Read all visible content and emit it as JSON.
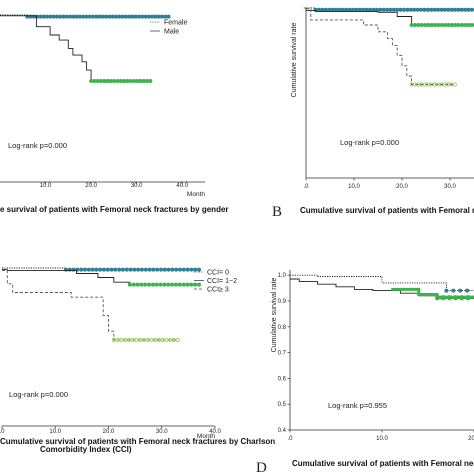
{
  "colors": {
    "blue": "#2f7f96",
    "green": "#39b54a",
    "lightgreen": "#8cc63f",
    "black": "#222222",
    "gray": "#555555"
  },
  "chart_data": [
    {
      "type": "line",
      "panel": "A",
      "title": "e survival of patients with Femoral neck fractures by gender",
      "xlabel": "Month",
      "ylabel": "",
      "xlim": [
        0,
        45
      ],
      "ylim": [
        0.0,
        1.0
      ],
      "x_ticks": [
        "10.0",
        "20.0",
        "30.0",
        "40.0"
      ],
      "letter": "",
      "logrank": "Log-rank p=0.000",
      "series": [
        {
          "name": "Female",
          "style": "dotted",
          "x": [
            0,
            6,
            6,
            37
          ],
          "y": [
            1.0,
            1.0,
            0.99,
            0.99
          ]
        },
        {
          "name": "Male",
          "style": "solid",
          "x": [
            0,
            8,
            8,
            11,
            11,
            13,
            13,
            15,
            15,
            16,
            16,
            18,
            18,
            19,
            19,
            20,
            20,
            33
          ],
          "y": [
            0.995,
            0.995,
            0.93,
            0.93,
            0.88,
            0.88,
            0.85,
            0.85,
            0.8,
            0.8,
            0.76,
            0.76,
            0.72,
            0.72,
            0.67,
            0.67,
            0.605,
            0.605
          ]
        }
      ]
    },
    {
      "type": "line",
      "panel": "B",
      "title": "Cumulative survival of patients with Femoral neck",
      "xlabel": "",
      "ylabel": "Cumulative survival rate",
      "xlim": [
        0,
        35
      ],
      "ylim": [
        0.0,
        1.0
      ],
      "x_ticks": [
        ".0",
        "10.0",
        "20.0",
        "30.0"
      ],
      "letter": "B",
      "logrank": "Log-rank p=0.000",
      "series": [
        {
          "name": "",
          "style": "dotted",
          "x": [
            0,
            2,
            2,
            36
          ],
          "y": [
            1.0,
            1.0,
            0.99,
            0.99
          ]
        },
        {
          "name": "",
          "style": "solid",
          "x": [
            0,
            2,
            2,
            15,
            15,
            19,
            19,
            22,
            22,
            36
          ],
          "y": [
            0.985,
            0.985,
            0.98,
            0.98,
            0.975,
            0.975,
            0.95,
            0.95,
            0.9,
            0.9
          ]
        },
        {
          "name": "",
          "style": "dashed",
          "x": [
            0,
            1,
            1,
            12,
            12,
            15,
            15,
            17,
            17,
            18,
            18,
            19,
            19,
            20,
            20,
            21,
            21,
            22,
            22,
            31
          ],
          "y": [
            0.995,
            0.995,
            0.93,
            0.93,
            0.9,
            0.9,
            0.86,
            0.86,
            0.82,
            0.82,
            0.78,
            0.78,
            0.72,
            0.72,
            0.66,
            0.66,
            0.6,
            0.6,
            0.55,
            0.55
          ]
        }
      ]
    },
    {
      "type": "line",
      "panel": "C",
      "title": "Cumulative survival of patients with Femoral neck fractures by Charlson",
      "title2": "Comorbidity Index (CCI)",
      "xlabel": "Month",
      "ylabel": "",
      "xlim": [
        0,
        40
      ],
      "ylim": [
        0.0,
        1.0
      ],
      "x_ticks": [
        ".0",
        "10.0",
        "20.0",
        "30.0",
        "40.0"
      ],
      "letter": "",
      "logrank": "Log-rank p=0.000",
      "legend": [
        "CCI= 0",
        "CCI= 1~2",
        "CCI≥ 3"
      ],
      "series": [
        {
          "name": "CCI= 0",
          "style": "dotted",
          "x": [
            0,
            12,
            12,
            37
          ],
          "y": [
            1.0,
            1.0,
            0.99,
            0.99
          ]
        },
        {
          "name": "CCI= 1~2",
          "style": "solid",
          "x": [
            0,
            1,
            1,
            14,
            14,
            18,
            18,
            21,
            21,
            24,
            24,
            37
          ],
          "y": [
            0.99,
            0.99,
            0.985,
            0.985,
            0.965,
            0.965,
            0.94,
            0.94,
            0.91,
            0.91,
            0.895,
            0.895
          ]
        },
        {
          "name": "CCI≥ 3",
          "style": "dashed",
          "x": [
            0,
            1,
            1,
            2,
            2,
            13,
            13,
            19,
            19,
            20,
            20,
            21,
            21,
            33
          ],
          "y": [
            0.985,
            0.985,
            0.9,
            0.9,
            0.845,
            0.845,
            0.815,
            0.815,
            0.7,
            0.7,
            0.6,
            0.6,
            0.545,
            0.545
          ]
        }
      ]
    },
    {
      "type": "line",
      "panel": "D",
      "title": "Cumulative survival of patients with Femoral neck fractures by treatmen",
      "xlabel": "",
      "ylabel": "Cumulative survival rate",
      "xlim": [
        0,
        20
      ],
      "ylim": [
        0.4,
        1.02
      ],
      "y_ticks": [
        "0.4",
        "0.5",
        "0.6",
        "0.7",
        "0.8",
        "0.9",
        "1.0"
      ],
      "x_ticks": [
        ".0",
        "10.0",
        "20.0"
      ],
      "letter": "D",
      "logrank": "Log-rank p=0.955",
      "series": [
        {
          "name": "",
          "style": "dotted",
          "x": [
            0,
            3,
            3,
            10,
            10,
            17,
            17,
            20
          ],
          "y": [
            1.0,
            1.0,
            0.995,
            0.995,
            0.97,
            0.97,
            0.94,
            0.94
          ]
        },
        {
          "name": "",
          "style": "solid",
          "x": [
            0,
            1,
            1,
            3,
            3,
            5,
            5,
            7,
            7,
            9,
            9,
            12,
            12,
            14,
            14,
            16,
            16,
            20
          ],
          "y": [
            0.985,
            0.985,
            0.975,
            0.975,
            0.965,
            0.965,
            0.955,
            0.955,
            0.945,
            0.945,
            0.94,
            0.94,
            0.93,
            0.93,
            0.92,
            0.92,
            0.91,
            0.91
          ]
        },
        {
          "name": "",
          "style": "solid-green",
          "x": [
            11,
            14,
            14,
            16,
            16,
            20
          ],
          "y": [
            0.945,
            0.945,
            0.925,
            0.925,
            0.915,
            0.915
          ]
        }
      ]
    }
  ]
}
